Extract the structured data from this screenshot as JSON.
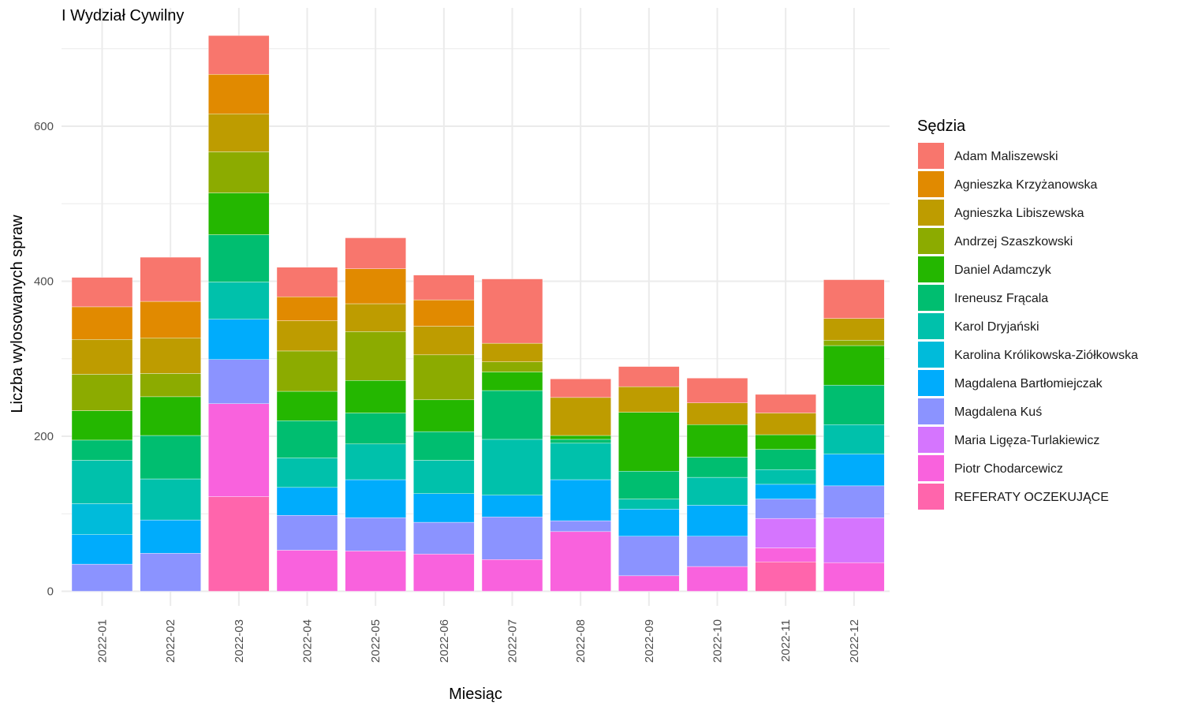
{
  "chart_data": {
    "type": "bar",
    "stacked": true,
    "title": "I Wydział Cywilny",
    "xlabel": "Miesiąc",
    "ylabel": "Liczba wylosowanych spraw",
    "ylim": [
      0,
      720
    ],
    "y_ticks": [
      0,
      200,
      400,
      600
    ],
    "grid": true,
    "legend_title": "Sędzia",
    "legend_position": "right",
    "categories": [
      "2022-01",
      "2022-02",
      "2022-03",
      "2022-04",
      "2022-05",
      "2022-06",
      "2022-07",
      "2022-08",
      "2022-09",
      "2022-10",
      "2022-11",
      "2022-12"
    ],
    "series": [
      {
        "name": "Adam Maliszewski",
        "color": "#F8766D",
        "values": [
          38,
          57,
          50,
          38,
          40,
          32,
          83,
          24,
          26,
          32,
          24,
          50
        ]
      },
      {
        "name": "Agnieszka Krzyżanowska",
        "color": "#E18A00",
        "values": [
          42,
          47,
          51,
          31,
          45,
          34,
          0,
          0,
          0,
          0,
          0,
          0
        ]
      },
      {
        "name": "Agnieszka Libiszewska",
        "color": "#BE9C00",
        "values": [
          45,
          46,
          49,
          39,
          36,
          37,
          24,
          49,
          33,
          28,
          28,
          28
        ]
      },
      {
        "name": "Andrzej Szaszkowski",
        "color": "#8CAB00",
        "values": [
          47,
          30,
          53,
          52,
          63,
          58,
          13,
          0,
          0,
          0,
          0,
          7
        ]
      },
      {
        "name": "Daniel Adamczyk",
        "color": "#24B700",
        "values": [
          38,
          50,
          54,
          38,
          42,
          41,
          24,
          5,
          76,
          42,
          19,
          51
        ]
      },
      {
        "name": "Ireneusz Frącala",
        "color": "#00BE70",
        "values": [
          26,
          56,
          61,
          48,
          40,
          37,
          63,
          5,
          36,
          26,
          26,
          51
        ]
      },
      {
        "name": "Karol Dryjański",
        "color": "#00C1AB",
        "values": [
          56,
          53,
          48,
          38,
          46,
          43,
          72,
          47,
          13,
          36,
          19,
          38
        ]
      },
      {
        "name": "Karolina Królikowska-Ziółkowska",
        "color": "#00BBDA",
        "values": [
          40,
          0,
          0,
          0,
          0,
          0,
          0,
          0,
          0,
          0,
          0,
          0
        ]
      },
      {
        "name": "Magdalena Bartłomiejczak",
        "color": "#00ACFC",
        "values": [
          38,
          43,
          52,
          36,
          49,
          37,
          28,
          53,
          35,
          40,
          19,
          41
        ]
      },
      {
        "name": "Magdalena Kuś",
        "color": "#8B93FF",
        "values": [
          35,
          49,
          57,
          45,
          43,
          41,
          55,
          14,
          51,
          39,
          25,
          41
        ]
      },
      {
        "name": "Maria Ligęza-Turlakiewicz",
        "color": "#D575FE",
        "values": [
          0,
          0,
          0,
          0,
          0,
          0,
          0,
          0,
          0,
          0,
          38,
          58
        ]
      },
      {
        "name": "Piotr Chodarcewicz",
        "color": "#F962DD",
        "values": [
          0,
          0,
          120,
          53,
          52,
          48,
          41,
          77,
          20,
          32,
          18,
          37
        ]
      },
      {
        "name": "REFERATY OCZEKUJĄCE",
        "color": "#FF65AC",
        "values": [
          0,
          0,
          122,
          0,
          0,
          0,
          0,
          0,
          0,
          0,
          38,
          0
        ]
      }
    ]
  }
}
